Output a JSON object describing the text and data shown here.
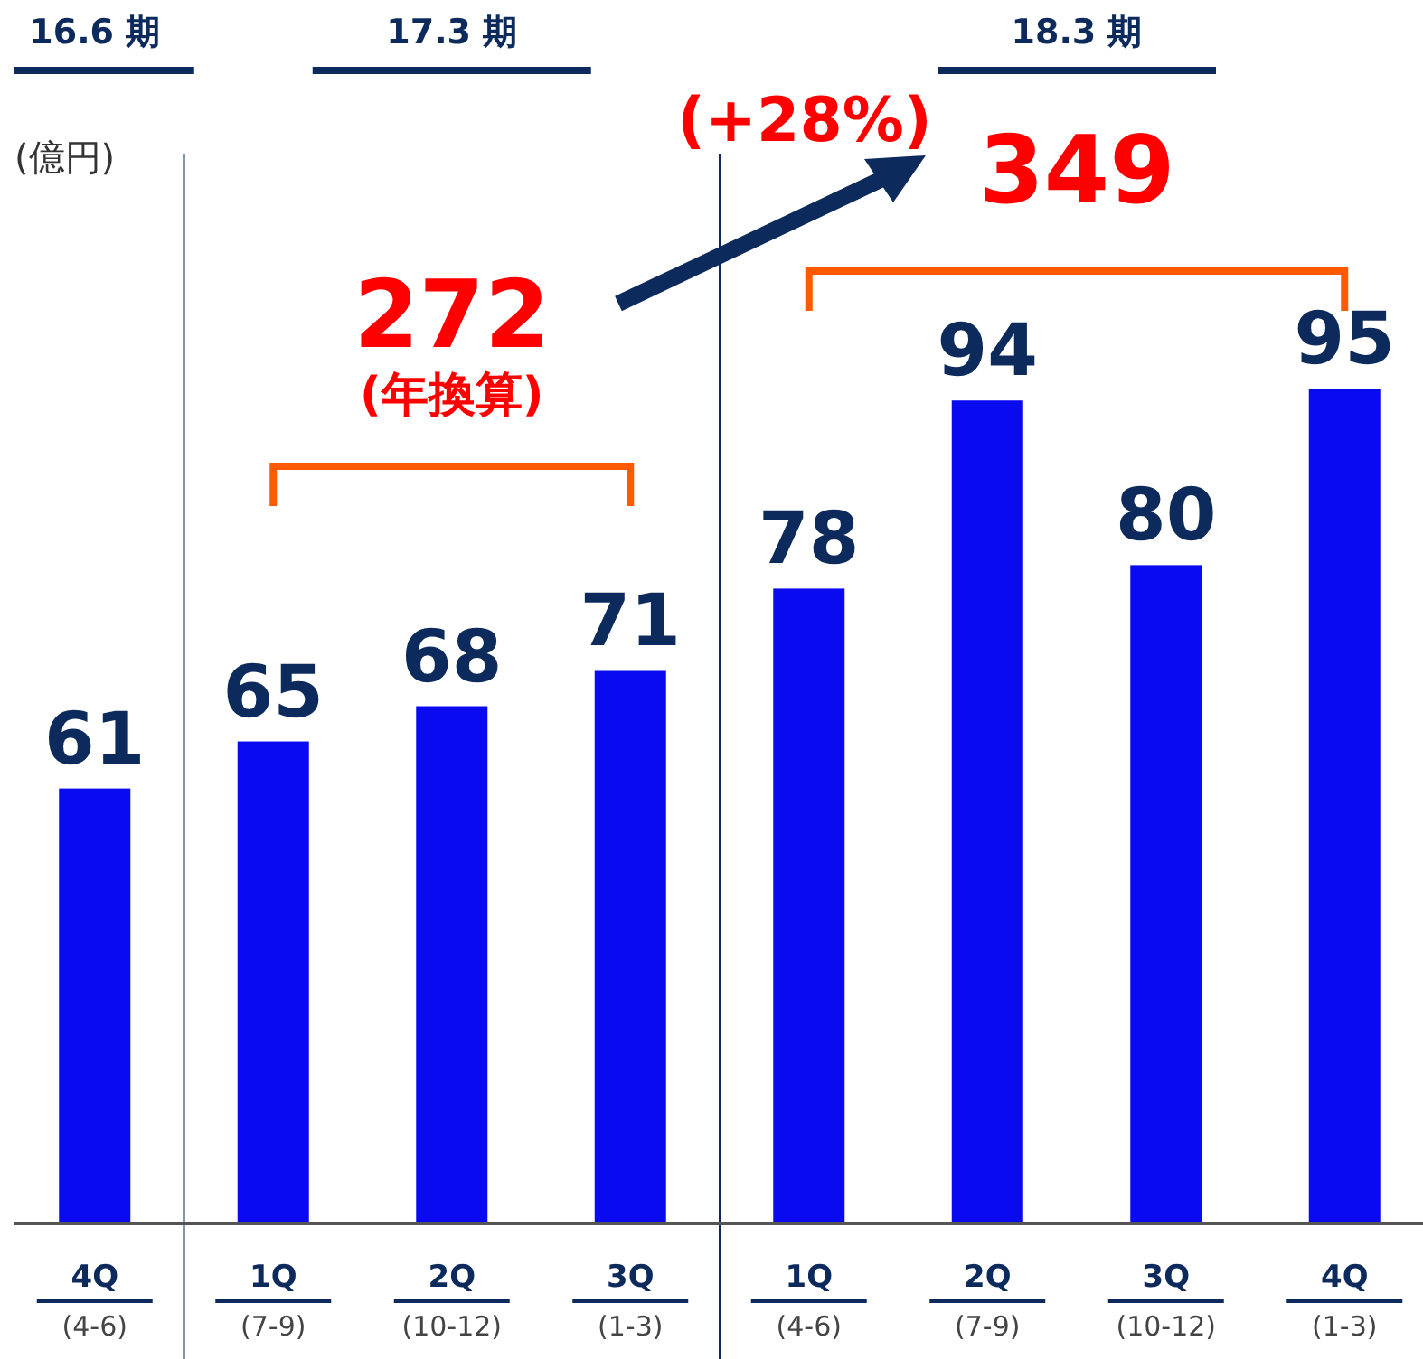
{
  "chart_data": {
    "type": "bar",
    "ylabel": "(億円)",
    "categories": [
      "4Q (4-6)",
      "1Q (7-9)",
      "2Q (10-12)",
      "3Q (1-3)",
      "1Q (4-6)",
      "2Q (7-9)",
      "3Q (10-12)",
      "4Q (1-3)"
    ],
    "values": [
      61,
      65,
      68,
      71,
      78,
      94,
      80,
      95
    ],
    "color": "#0a0af0",
    "data_labels": true,
    "ylim": [
      24,
      115
    ],
    "annotations": [
      "16.6 期",
      "17.3 期",
      "18.3 期",
      "272",
      "(年換算)",
      "(+28%)",
      "349"
    ]
  }
}
